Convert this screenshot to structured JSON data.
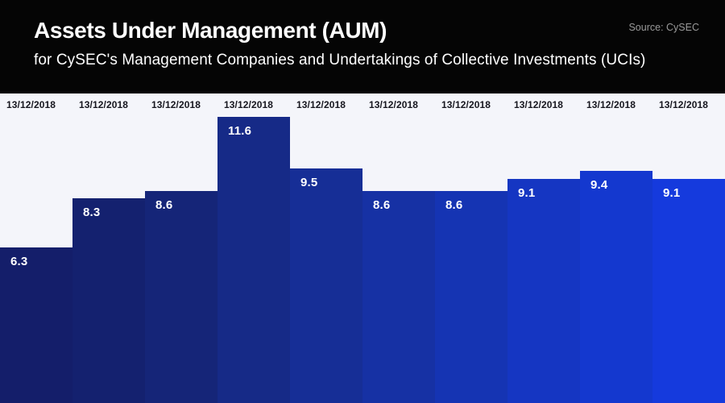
{
  "header": {
    "title": "Assets Under Management (AUM)",
    "subtitle": "for CySEC's Management Companies and Undertakings of Collective Investments (UCIs)",
    "source": "Source: CySEC"
  },
  "colors": {
    "header_bg": "#050505",
    "chart_bg": "#f4f5fa",
    "value_label_text": "#ffffff",
    "date_label_text": "#16161e",
    "source_text": "#9a9a9a",
    "bar_colors": [
      "#141e6a",
      "#14216f",
      "#152578",
      "#162a87",
      "#162e96",
      "#1631a4",
      "#1534b3",
      "#1536c2",
      "#1438cf",
      "#153add"
    ]
  },
  "chart_data": {
    "type": "bar",
    "title": "Assets Under Management (AUM)",
    "subtitle": "for CySEC's Management Companies and Undertakings of Collective Investments (UCIs)",
    "source_note": "Source: CySEC",
    "categories": [
      "13/12/2018",
      "13/12/2018",
      "13/12/2018",
      "13/12/2018",
      "13/12/2018",
      "13/12/2018",
      "13/12/2018",
      "13/12/2018",
      "13/12/2018",
      "13/12/2018"
    ],
    "values": [
      6.3,
      8.3,
      8.6,
      11.6,
      9.5,
      8.6,
      8.6,
      9.1,
      9.4,
      9.1
    ],
    "value_labels_shown": true,
    "category_labels_position": "top",
    "xlabel": "",
    "ylabel": "",
    "ylim": [
      0,
      12.55
    ],
    "grid": false,
    "legend": false,
    "bar_color_gradient": [
      "#141e6a",
      "#153add"
    ]
  }
}
